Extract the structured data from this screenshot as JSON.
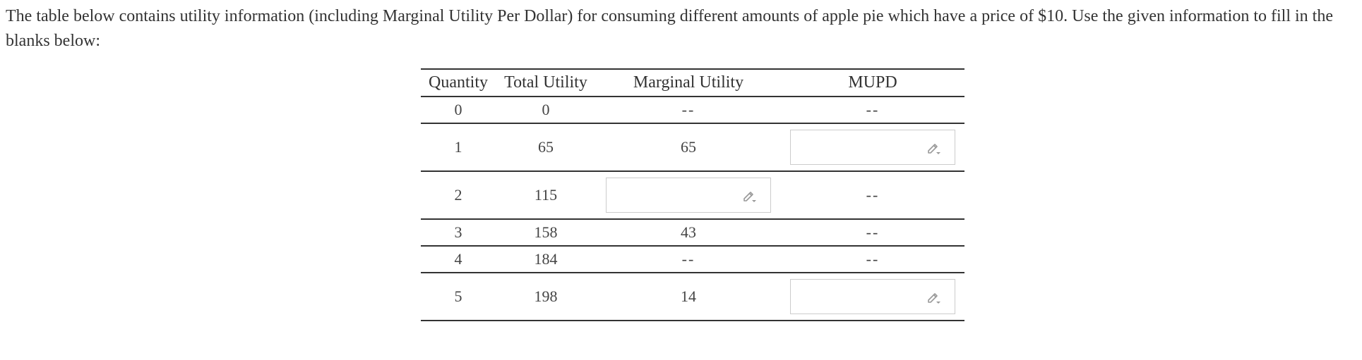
{
  "intro": {
    "text": "The table below contains utility information (including Marginal Utility Per Dollar) for consuming different amounts of apple pie which have a price of $10. Use the given information to fill in the blanks below:"
  },
  "table": {
    "headers": {
      "quantity": "Quantity",
      "total_utility": "Total Utility",
      "marginal_utility": "Marginal Utility",
      "mupd": "MUPD"
    },
    "rows": [
      {
        "quantity": "0",
        "total_utility": "0",
        "marginal_utility": "--",
        "mupd": "--"
      },
      {
        "quantity": "1",
        "total_utility": "65",
        "marginal_utility": "65",
        "mupd": ""
      },
      {
        "quantity": "2",
        "total_utility": "115",
        "marginal_utility": "",
        "mupd": "--"
      },
      {
        "quantity": "3",
        "total_utility": "158",
        "marginal_utility": "43",
        "mupd": "--"
      },
      {
        "quantity": "4",
        "total_utility": "184",
        "marginal_utility": "--",
        "mupd": "--"
      },
      {
        "quantity": "5",
        "total_utility": "198",
        "marginal_utility": "14",
        "mupd": ""
      }
    ]
  },
  "icons": {
    "answer_field_icon": "pencil-icon"
  },
  "colors": {
    "text": "#333333",
    "rule": "#333333",
    "input_border": "#cccccc",
    "icon": "#999999"
  }
}
